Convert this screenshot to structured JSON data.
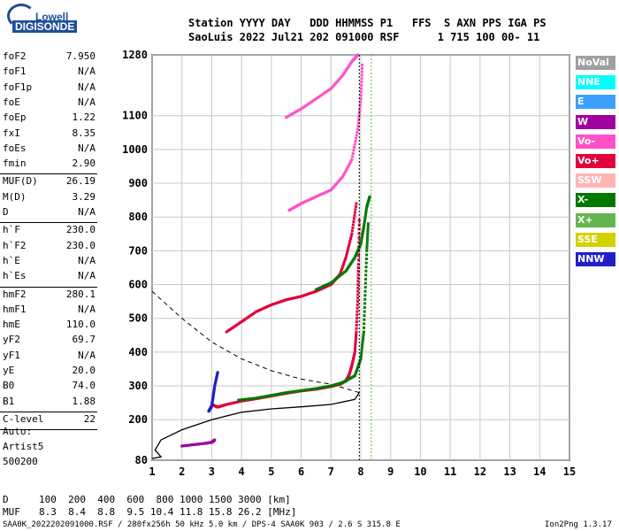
{
  "logo": {
    "line1": "Lowell",
    "line2": "DIGISONDE"
  },
  "header": {
    "line1": "Station YYYY DAY   DDD HHMMSS P1   FFS  S AXN PPS IGA PS",
    "line2": "SaoLuis 2022 Jul21 202 091000 RSF      1 715 100 00- 11"
  },
  "params": [
    {
      "k": "foF2",
      "v": "7.950"
    },
    {
      "k": "foF1",
      "v": "N/A"
    },
    {
      "k": "foF1p",
      "v": "N/A"
    },
    {
      "k": "foE",
      "v": "N/A"
    },
    {
      "k": "foEp",
      "v": "1.22"
    },
    {
      "k": "fxI",
      "v": "8.35"
    },
    {
      "k": "foEs",
      "v": "N/A"
    },
    {
      "k": "fmin",
      "v": "2.90"
    },
    {
      "k": "MUF(D)",
      "v": "26.19"
    },
    {
      "k": "M(D)",
      "v": "3.29"
    },
    {
      "k": "D",
      "v": "N/A"
    },
    {
      "k": "h`F",
      "v": "230.0"
    },
    {
      "k": "h`F2",
      "v": "230.0"
    },
    {
      "k": "h`E",
      "v": "N/A"
    },
    {
      "k": "h`Es",
      "v": "N/A"
    },
    {
      "k": "hmF2",
      "v": "280.1"
    },
    {
      "k": "hmF1",
      "v": "N/A"
    },
    {
      "k": "hmE",
      "v": "110.0"
    },
    {
      "k": "yF2",
      "v": "69.7"
    },
    {
      "k": "yF1",
      "v": "N/A"
    },
    {
      "k": "yE",
      "v": "20.0"
    },
    {
      "k": "B0",
      "v": "74.0"
    },
    {
      "k": "B1",
      "v": "1.88"
    },
    {
      "k": "C-level",
      "v": "22"
    }
  ],
  "scaling": {
    "auto": "Auto:",
    "artist": "Artist5",
    "code": "500200"
  },
  "muf_table": {
    "d_label": "D",
    "d_values": "100  200  400  600  800 1000 1500 3000 [km]",
    "muf_label": "MUF",
    "muf_values": "8.3  8.4  8.8  9.5 10.4 11.8 15.8 26.2 [MHz]"
  },
  "footer": {
    "left": "SAA0K_2022202091000.RSF / 280fx256h 50 kHz 5.0 km / DPS-4 SAA0K 903 / 2.6 S 315.8 E",
    "right": "Ion2Png 1.3.17"
  },
  "legend": [
    {
      "label": "NoVal",
      "color": "#a0a0a0"
    },
    {
      "label": "NNE",
      "color": "#00ffff"
    },
    {
      "label": "E",
      "color": "#3ca0ff"
    },
    {
      "label": "W",
      "color": "#a000a0"
    },
    {
      "label": "Vo-",
      "color": "#ff50c8"
    },
    {
      "label": "Vo+",
      "color": "#e0003c"
    },
    {
      "label": "SSW",
      "color": "#ffb4b4"
    },
    {
      "label": "X-",
      "color": "#007800"
    },
    {
      "label": "X+",
      "color": "#64b450"
    },
    {
      "label": "SSE",
      "color": "#d2d200"
    },
    {
      "label": "NNW",
      "color": "#2020c8"
    }
  ],
  "chart_data": {
    "type": "scatter",
    "xlabel": "",
    "ylabel": "",
    "xlim": [
      1,
      15
    ],
    "ylim": [
      80,
      1280
    ],
    "x_ticks": [
      1,
      2,
      3,
      4,
      5,
      6,
      7,
      8,
      9,
      10,
      11,
      12,
      13,
      14,
      15
    ],
    "y_ticks": [
      80,
      200,
      300,
      400,
      500,
      600,
      700,
      800,
      900,
      1000,
      1100,
      1280
    ],
    "grid": true,
    "foF2_marker": 7.95,
    "fxI_marker": 8.35,
    "series": [
      {
        "name": "Vo+ O-trace",
        "color_key": "Vo+",
        "points": [
          [
            3.0,
            245
          ],
          [
            3.2,
            237
          ],
          [
            3.5,
            245
          ],
          [
            4.0,
            255
          ],
          [
            4.5,
            262
          ],
          [
            5.0,
            270
          ],
          [
            5.5,
            278
          ],
          [
            6.0,
            285
          ],
          [
            6.5,
            290
          ],
          [
            7.0,
            298
          ],
          [
            7.3,
            305
          ],
          [
            7.5,
            315
          ],
          [
            7.6,
            330
          ],
          [
            7.7,
            360
          ],
          [
            7.8,
            400
          ],
          [
            7.85,
            460
          ],
          [
            7.9,
            560
          ],
          [
            7.92,
            660
          ],
          [
            7.95,
            790
          ]
        ]
      },
      {
        "name": "X- X-trace",
        "color_key": "X-",
        "points": [
          [
            3.9,
            258
          ],
          [
            4.5,
            264
          ],
          [
            5.0,
            272
          ],
          [
            5.5,
            280
          ],
          [
            6.0,
            286
          ],
          [
            6.5,
            292
          ],
          [
            7.0,
            300
          ],
          [
            7.4,
            310
          ],
          [
            7.8,
            330
          ],
          [
            8.0,
            380
          ],
          [
            8.1,
            460
          ],
          [
            8.15,
            580
          ],
          [
            8.2,
            700
          ],
          [
            8.25,
            780
          ]
        ]
      },
      {
        "name": "Vo+ 2nd hop",
        "color_key": "Vo+",
        "points": [
          [
            3.5,
            460
          ],
          [
            4.0,
            490
          ],
          [
            4.5,
            520
          ],
          [
            5.0,
            540
          ],
          [
            5.5,
            555
          ],
          [
            6.0,
            565
          ],
          [
            6.5,
            580
          ],
          [
            7.0,
            600
          ],
          [
            7.3,
            630
          ],
          [
            7.5,
            680
          ],
          [
            7.7,
            750
          ],
          [
            7.85,
            840
          ]
        ]
      },
      {
        "name": "X- 2nd hop",
        "color_key": "X-",
        "points": [
          [
            6.5,
            585
          ],
          [
            7.0,
            605
          ],
          [
            7.5,
            640
          ],
          [
            7.8,
            680
          ],
          [
            8.0,
            720
          ],
          [
            8.1,
            770
          ],
          [
            8.2,
            830
          ],
          [
            8.3,
            860
          ]
        ]
      },
      {
        "name": "Vo- 3rd hop",
        "color_key": "Vo-",
        "points": [
          [
            5.6,
            820
          ],
          [
            6.0,
            840
          ],
          [
            6.5,
            860
          ],
          [
            7.0,
            880
          ],
          [
            7.4,
            920
          ],
          [
            7.7,
            970
          ],
          [
            7.9,
            1060
          ],
          [
            8.0,
            1150
          ],
          [
            8.05,
            1250
          ]
        ]
      },
      {
        "name": "Vo- 4th hop",
        "color_key": "Vo-",
        "points": [
          [
            5.5,
            1095
          ],
          [
            6.0,
            1120
          ],
          [
            6.5,
            1150
          ],
          [
            7.0,
            1180
          ],
          [
            7.4,
            1220
          ],
          [
            7.7,
            1260
          ],
          [
            7.9,
            1280
          ]
        ]
      },
      {
        "name": "NNW E-region",
        "color_key": "NNW",
        "points": [
          [
            2.9,
            225
          ],
          [
            3.0,
            240
          ],
          [
            3.05,
            270
          ],
          [
            3.1,
            300
          ],
          [
            3.2,
            340
          ]
        ]
      },
      {
        "name": "W low",
        "color_key": "W",
        "points": [
          [
            2.0,
            122
          ],
          [
            2.4,
            126
          ],
          [
            2.8,
            130
          ],
          [
            3.0,
            133
          ],
          [
            3.1,
            140
          ]
        ]
      }
    ],
    "profile_solid": [
      [
        7.95,
        280
      ],
      [
        7.8,
        260
      ],
      [
        7.0,
        245
      ],
      [
        6.0,
        238
      ],
      [
        5.0,
        232
      ],
      [
        4.0,
        222
      ],
      [
        3.0,
        200
      ],
      [
        2.0,
        170
      ],
      [
        1.3,
        140
      ],
      [
        1.1,
        110
      ],
      [
        1.3,
        90
      ],
      [
        1.0,
        85
      ]
    ],
    "profile_dashed": [
      [
        1.0,
        580
      ],
      [
        1.5,
        540
      ],
      [
        2.0,
        500
      ],
      [
        3.0,
        430
      ],
      [
        4.0,
        380
      ],
      [
        5.0,
        345
      ],
      [
        6.0,
        320
      ],
      [
        7.0,
        305
      ],
      [
        7.95,
        280
      ]
    ]
  }
}
